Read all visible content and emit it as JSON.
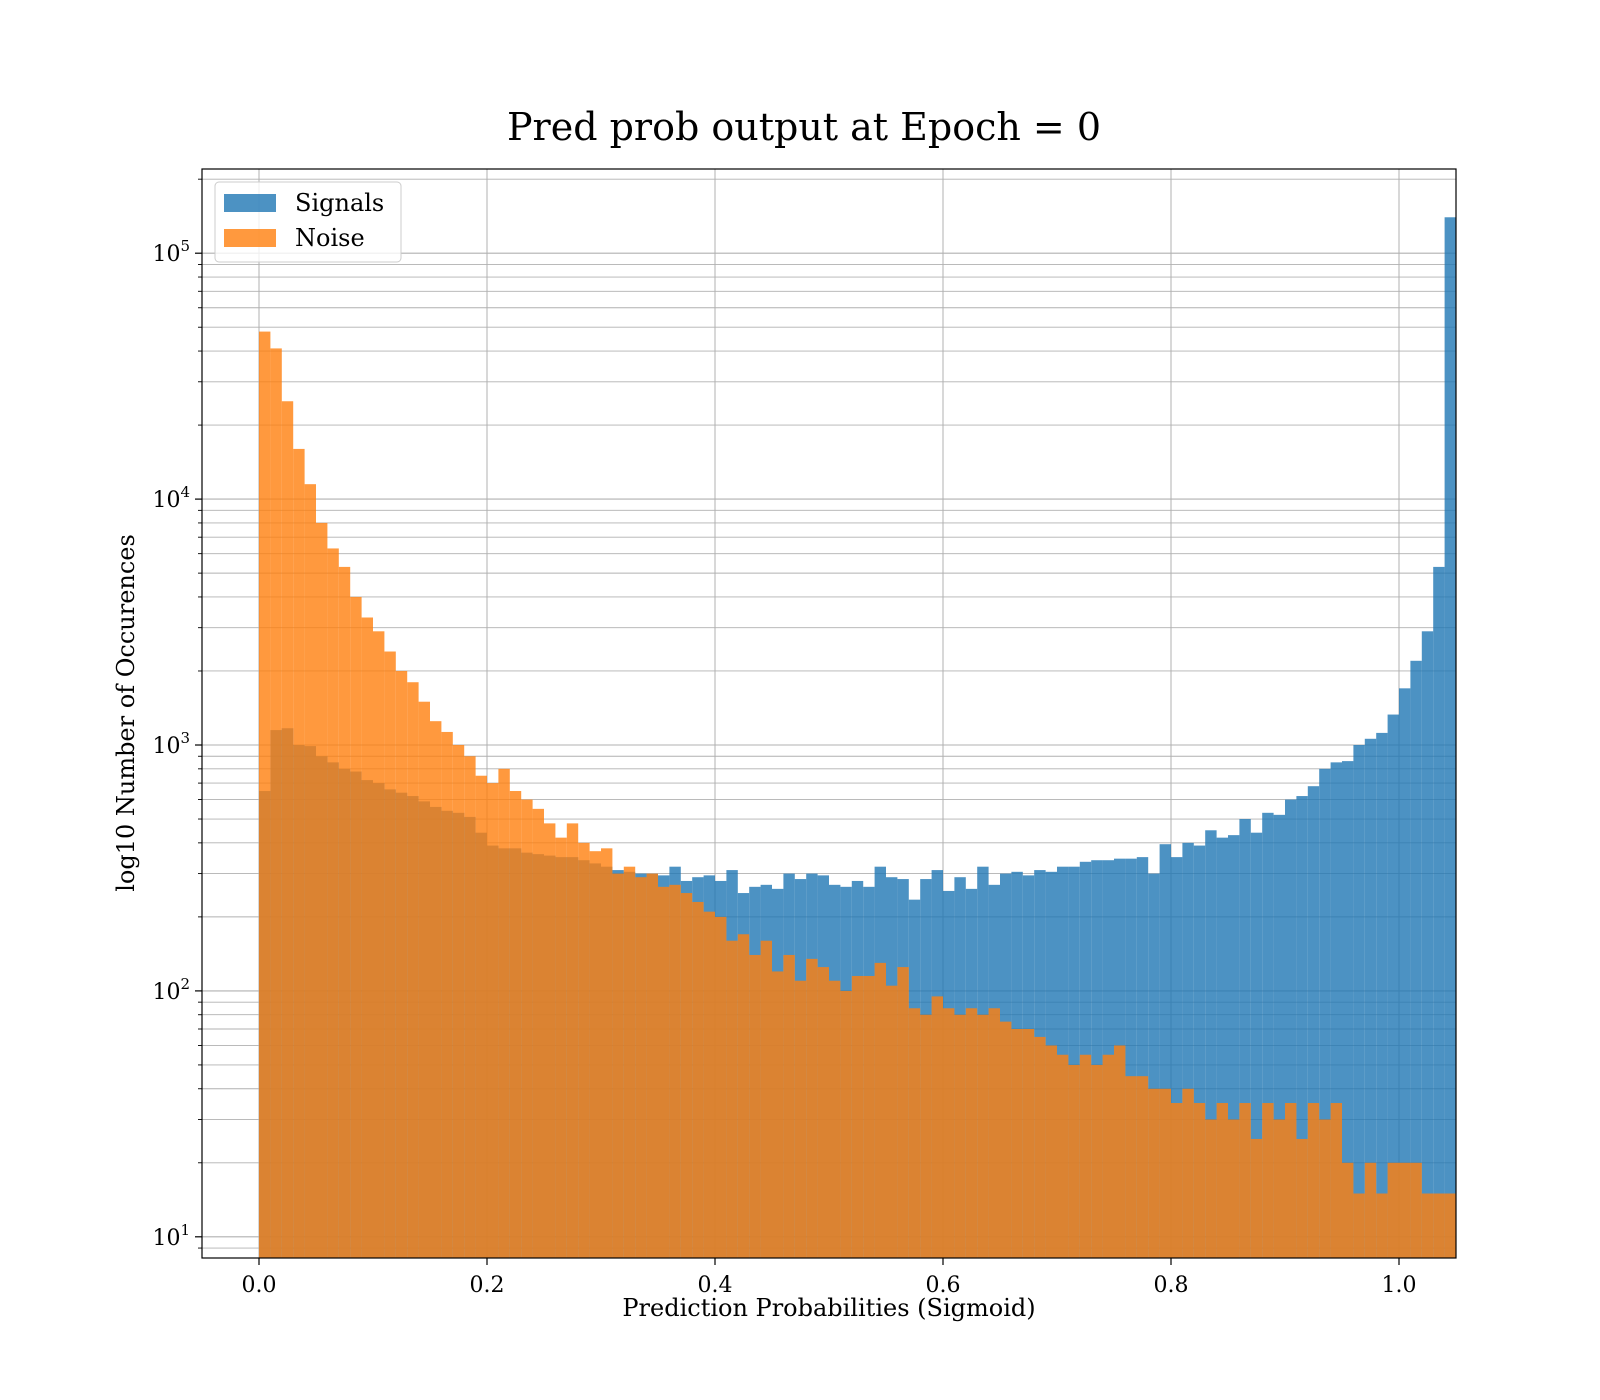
{
  "chart_data": {
    "type": "bar",
    "title": "Pred prob output at Epoch = 0",
    "xlabel": "Prediction Probabilities (Sigmoid)",
    "ylabel": "log10 Number of Occurences",
    "xlim": [
      -0.05,
      1.05
    ],
    "ylim": [
      8.2,
      220000
    ],
    "yscale": "log",
    "x_ticks": [
      {
        "value": 0.0,
        "label": "0.0"
      },
      {
        "value": 0.2,
        "label": "0.2"
      },
      {
        "value": 0.4,
        "label": "0.4"
      },
      {
        "value": 0.6,
        "label": "0.6"
      },
      {
        "value": 0.8,
        "label": "0.8"
      },
      {
        "value": 1.0,
        "label": "1.0"
      }
    ],
    "y_ticks": [
      {
        "value": 10,
        "base": "10",
        "exp": "1"
      },
      {
        "value": 100,
        "base": "10",
        "exp": "2"
      },
      {
        "value": 1000,
        "base": "10",
        "exp": "3"
      },
      {
        "value": 10000,
        "base": "10",
        "exp": "4"
      },
      {
        "value": 100000,
        "base": "10",
        "exp": "5"
      }
    ],
    "grid": true,
    "legend_position": "top-left",
    "bin_width": 0.01,
    "bin_start": 0.0,
    "series": [
      {
        "name": "Signals",
        "color": "#1f77b4",
        "alpha": 0.8,
        "values": [
          650,
          1150,
          1170,
          1000,
          990,
          900,
          850,
          800,
          780,
          720,
          700,
          660,
          640,
          620,
          590,
          560,
          540,
          530,
          510,
          440,
          390,
          380,
          380,
          365,
          360,
          355,
          350,
          350,
          340,
          330,
          320,
          310,
          305,
          300,
          300,
          295,
          320,
          280,
          290,
          295,
          280,
          310,
          250,
          265,
          270,
          260,
          300,
          285,
          300,
          295,
          270,
          265,
          280,
          265,
          320,
          290,
          285,
          235,
          285,
          310,
          255,
          290,
          260,
          320,
          270,
          300,
          305,
          295,
          310,
          305,
          320,
          320,
          335,
          340,
          340,
          345,
          345,
          350,
          300,
          395,
          350,
          400,
          390,
          450,
          420,
          430,
          500,
          440,
          530,
          520,
          600,
          620,
          680,
          800,
          850,
          860,
          1000,
          1060,
          1120,
          1330,
          1700,
          2200,
          2900,
          5300,
          140000
        ]
      },
      {
        "name": "Noise",
        "color": "#ff7f0e",
        "alpha": 0.8,
        "values": [
          48000,
          41000,
          25000,
          16000,
          11500,
          8000,
          6300,
          5300,
          4000,
          3300,
          2900,
          2400,
          2000,
          1800,
          1500,
          1250,
          1130,
          1000,
          900,
          750,
          700,
          800,
          650,
          600,
          550,
          480,
          420,
          480,
          400,
          370,
          380,
          300,
          320,
          290,
          300,
          265,
          270,
          250,
          230,
          210,
          200,
          160,
          170,
          140,
          160,
          120,
          140,
          110,
          135,
          125,
          110,
          100,
          115,
          115,
          130,
          105,
          125,
          85,
          80,
          95,
          85,
          80,
          85,
          80,
          85,
          75,
          70,
          70,
          65,
          60,
          55,
          50,
          55,
          50,
          55,
          60,
          45,
          45,
          40,
          40,
          35,
          40,
          35,
          30,
          35,
          30,
          35,
          25,
          35,
          30,
          35,
          25,
          35,
          30,
          35,
          20,
          15,
          20,
          15,
          20,
          20,
          20,
          15,
          15,
          15
        ]
      }
    ]
  }
}
